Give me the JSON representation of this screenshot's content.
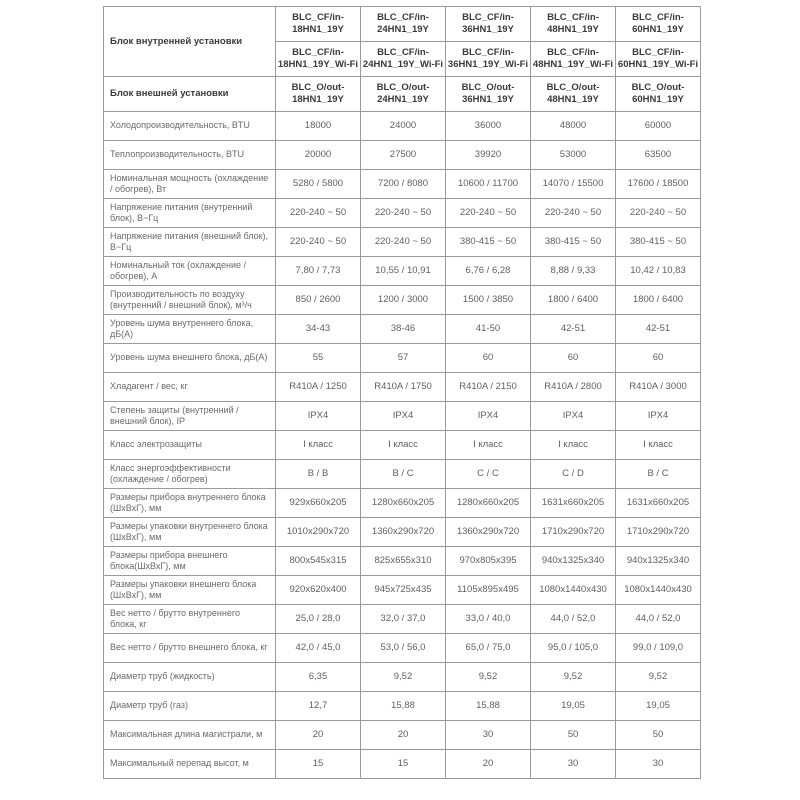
{
  "table": {
    "colors": {
      "border": "#9a9a9a",
      "header_text": "#3a3a3a",
      "body_text": "#6a6a6a",
      "background": "#ffffff"
    },
    "header": {
      "indoor_label": "Блок внутренней установки",
      "outdoor_label": "Блок внешней установки",
      "indoor_models": [
        "BLC_CF/in-\n18HN1_19Y",
        "BLC_CF/in-\n24HN1_19Y",
        "BLC_CF/in-\n36HN1_19Y",
        "BLC_CF/in-\n48HN1_19Y",
        "BLC_CF/in-\n60HN1_19Y"
      ],
      "indoor_wifi_models": [
        "BLC_CF/in-\n18HN1_19Y_Wi-Fi",
        "BLC_CF/in-\n24HN1_19Y_Wi-Fi",
        "BLC_CF/in-\n36HN1_19Y_Wi-Fi",
        "BLC_CF/in-\n48HN1_19Y_Wi-Fi",
        "BLC_CF/in-\n60HN1_19Y_Wi-Fi"
      ],
      "outdoor_models": [
        "BLC_O/out-\n18HN1_19Y",
        "BLC_O/out-\n24HN1_19Y",
        "BLC_O/out-\n36HN1_19Y",
        "BLC_O/out-\n48HN1_19Y",
        "BLC_O/out-\n60HN1_19Y"
      ]
    },
    "rows": [
      {
        "label": "Холодопроизводительность, BTU",
        "values": [
          "18000",
          "24000",
          "36000",
          "48000",
          "60000"
        ]
      },
      {
        "label": "Теплопроизводительность, BTU",
        "values": [
          "20000",
          "27500",
          "39920",
          "53000",
          "63500"
        ]
      },
      {
        "label": "Номинальная мощность (охлаждение / обогрев), Вт",
        "values": [
          "5280 / 5800",
          "7200 / 8080",
          "10600 / 11700",
          "14070 / 15500",
          "17600 / 18500"
        ]
      },
      {
        "label": "Напряжение питания (внутренний блок), В~Гц",
        "values": [
          "220-240 ~ 50",
          "220-240 ~ 50",
          "220-240 ~ 50",
          "220-240 ~ 50",
          "220-240 ~ 50"
        ]
      },
      {
        "label": "Напряжение питания (внешний блок), В~Гц",
        "values": [
          "220-240 ~ 50",
          "220-240 ~ 50",
          "380-415 ~ 50",
          "380-415 ~ 50",
          "380-415 ~ 50"
        ]
      },
      {
        "label": "Номинальный ток (охлаждение / обогрев), А",
        "values": [
          "7,80 / 7,73",
          "10,55 / 10,91",
          "6,76 / 6,28",
          "8,88 / 9,33",
          "10,42 / 10,83"
        ]
      },
      {
        "label": "Производительность по воздуху (внутренний / внешний блок), м³/ч",
        "values": [
          "850 / 2600",
          "1200 / 3000",
          "1500 / 3850",
          "1800 / 6400",
          "1800 / 6400"
        ]
      },
      {
        "label": "Уровень шума внутреннего блока, дБ(А)",
        "values": [
          "34-43",
          "38-46",
          "41-50",
          "42-51",
          "42-51"
        ]
      },
      {
        "label": "Уровень шума внешнего блока, дБ(А)",
        "values": [
          "55",
          "57",
          "60",
          "60",
          "60"
        ]
      },
      {
        "label": "Хладагент / вес, кг",
        "values": [
          "R410A / 1250",
          "R410A / 1750",
          "R410A / 2150",
          "R410A / 2800",
          "R410A / 3000"
        ]
      },
      {
        "label": "Степень защиты (внутренний / внешний блок), IP",
        "values": [
          "IPX4",
          "IPX4",
          "IPX4",
          "IPX4",
          "IPX4"
        ]
      },
      {
        "label": "Класс электрозащиты",
        "values": [
          "I класс",
          "I класс",
          "I класс",
          "I класс",
          "I класс"
        ]
      },
      {
        "label": "Класс энергоэффективности (охлаждение / обогрев)",
        "values": [
          "B / B",
          "B / C",
          "C / C",
          "C / D",
          "B / C"
        ]
      },
      {
        "label": "Размеры прибора внутреннего блока (ШхВхГ), мм",
        "values": [
          "929x660x205",
          "1280x660x205",
          "1280x660x205",
          "1631x660x205",
          "1631x660x205"
        ]
      },
      {
        "label": "Размеры упаковки внутреннего блока (ШхВхГ), мм",
        "values": [
          "1010x290x720",
          "1360x290x720",
          "1360x290x720",
          "1710x290x720",
          "1710x290x720"
        ]
      },
      {
        "label": "Размеры прибора внешнего блока(ШхВхГ), мм",
        "values": [
          "800x545x315",
          "825x655x310",
          "970x805x395",
          "940x1325x340",
          "940x1325x340"
        ]
      },
      {
        "label": "Размеры упаковки внешнего блока (ШхВхГ), мм",
        "values": [
          "920x620x400",
          "945x725x435",
          "1105x895x495",
          "1080x1440x430",
          "1080x1440x430"
        ]
      },
      {
        "label": "Вес нетто / брутто внутреннего блока, кг",
        "values": [
          "25,0 / 28,0",
          "32,0 / 37,0",
          "33,0 / 40,0",
          "44,0 / 52,0",
          "44,0 / 52,0"
        ]
      },
      {
        "label": "Вес нетто / брутто внешнего блока, кг",
        "values": [
          "42,0 / 45,0",
          "53,0 / 56,0",
          "65,0 / 75,0",
          "95,0 / 105,0",
          "99,0 / 109,0"
        ]
      },
      {
        "label": "Диаметр труб (жидкость)",
        "values": [
          "6,35",
          "9,52",
          "9,52",
          "9,52",
          "9,52"
        ]
      },
      {
        "label": "Диаметр труб (газ)",
        "values": [
          "12,7",
          "15,88",
          "15,88",
          "19,05",
          "19,05"
        ]
      },
      {
        "label": "Максимальная длина магистрали, м",
        "values": [
          "20",
          "20",
          "30",
          "50",
          "50"
        ]
      },
      {
        "label": "Максимальный перепад высот, м",
        "values": [
          "15",
          "15",
          "20",
          "30",
          "30"
        ]
      }
    ]
  }
}
